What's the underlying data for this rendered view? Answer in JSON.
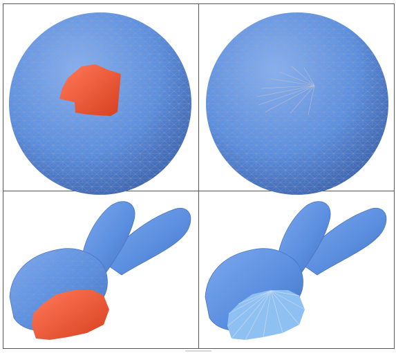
{
  "figure": {
    "layout": "2x2 grid",
    "panels": [
      {
        "subject": "sphere",
        "state": "hole",
        "mesh_color": "#5b8fe0",
        "patch_color": "#f0533a"
      },
      {
        "subject": "sphere",
        "state": "filled-fan",
        "mesh_color": "#5b8fe0"
      },
      {
        "subject": "bunny",
        "state": "hole",
        "mesh_color": "#5b8fe0",
        "patch_color": "#f0533a"
      },
      {
        "subject": "bunny",
        "state": "filled-fan",
        "mesh_color": "#5b8fe0",
        "fan_color": "#8ec1f2"
      }
    ],
    "colors": {
      "border": "#555555",
      "wire": "#a7a3b0",
      "mesh_light": "#86b0f0",
      "mesh": "#5b8fe0",
      "mesh_dark": "#3a62ad",
      "hole_light": "#ff7a5a",
      "hole_dark": "#d8401f",
      "fan": "#8ec1f2"
    }
  }
}
